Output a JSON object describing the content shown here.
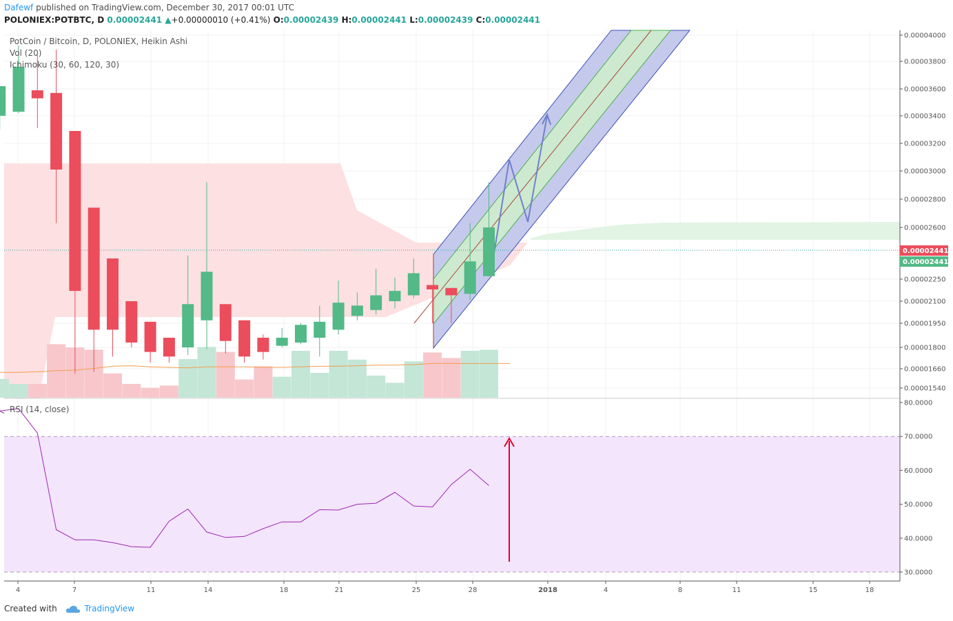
{
  "header": {
    "author": "Dafewf",
    "published": " published on TradingView.com, December 30, 2017 00:01 UTC",
    "symbol": "POLONIEX:POTBTC, D",
    "last": "0.00002441",
    "change": "+0.00000010 (+0.41%)",
    "o_label": "O:",
    "o": "0.00002439",
    "h_label": "H:",
    "h": "0.00002441",
    "l_label": "L:",
    "l": "0.00002439",
    "c_label": "C:",
    "c": "0.00002441"
  },
  "legend": {
    "title": "PotCoin / Bitcoin, D, POLONIEX, Heikin Ashi",
    "vol": "Vol (20)",
    "ichimoku": "Ichimoku (30, 60, 120, 30)",
    "rsi": "RSI (14, close)"
  },
  "footer": {
    "created": "Created with",
    "brand": "TradingView"
  },
  "colors": {
    "up": "#53b987",
    "down": "#eb4d5c",
    "up_vol": "#c3e6d6",
    "down_vol": "#f7c7cc",
    "cloud_red": "#fde0e2",
    "cloud_green": "#e2f4e4",
    "rsi_line": "#9c27b0",
    "rsi_band": "#f3e5fc",
    "channel_blue": "#3f51b5",
    "channel_green": "#4caf50",
    "arrow": "#e3002d",
    "path": "#6f80c9"
  },
  "chart_data": [
    {
      "type": "candlestick",
      "title": "PotCoin / Bitcoin, D, POLONIEX, Heikin Ashi",
      "x_ticks": [
        "4",
        "7",
        "11",
        "14",
        "18",
        "21",
        "25",
        "28",
        "2018",
        "4",
        "8",
        "11",
        "15",
        "18"
      ],
      "y_ticks": [
        "0.00004000",
        "0.00003800",
        "0.00003600",
        "0.00003400",
        "0.00003200",
        "0.00003000",
        "0.00002800",
        "0.00002600",
        "0.00002250",
        "0.00002100",
        "0.00001950",
        "0.00001800",
        "0.00001660",
        "0.00001540"
      ],
      "price_labels": [
        "0.00002441",
        "0.00002441"
      ],
      "candles": [
        {
          "d": "Dec 3",
          "o": 3.4e-05,
          "h": 3.62e-05,
          "l": 3.3e-05,
          "c": 3.62e-05
        },
        {
          "d": "Dec 4",
          "o": 3.43e-05,
          "h": 3.92e-05,
          "l": 3.42e-05,
          "c": 3.76e-05
        },
        {
          "d": "Dec 5",
          "o": 3.59e-05,
          "h": 3.85e-05,
          "l": 3.31e-05,
          "c": 3.53e-05
        },
        {
          "d": "Dec 6",
          "o": 3.57e-05,
          "h": 3.89e-05,
          "l": 2.63e-05,
          "c": 3.01e-05
        },
        {
          "d": "Dec 7",
          "o": 3.29e-05,
          "h": 3.29e-05,
          "l": 1.63e-05,
          "c": 2.17e-05
        },
        {
          "d": "Dec 8",
          "o": 2.74e-05,
          "h": 2.74e-05,
          "l": 1.64e-05,
          "c": 1.91e-05
        },
        {
          "d": "Dec 9",
          "o": 2.39e-05,
          "h": 2.39e-05,
          "l": 1.74e-05,
          "c": 1.91e-05
        },
        {
          "d": "Dec 10",
          "o": 2.1e-05,
          "h": 2.1e-05,
          "l": 1.8e-05,
          "c": 1.83e-05
        },
        {
          "d": "Dec 11",
          "o": 1.96e-05,
          "h": 1.96e-05,
          "l": 1.7e-05,
          "c": 1.77e-05
        },
        {
          "d": "Dec 12",
          "o": 1.86e-05,
          "h": 1.86e-05,
          "l": 1.7e-05,
          "c": 1.74e-05
        },
        {
          "d": "Dec 13",
          "o": 1.8e-05,
          "h": 2.41e-05,
          "l": 1.75e-05,
          "c": 2.08e-05
        },
        {
          "d": "Dec 14",
          "o": 1.97e-05,
          "h": 2.92e-05,
          "l": 1.79e-05,
          "c": 2.3e-05
        },
        {
          "d": "Dec 15",
          "o": 2.08e-05,
          "h": 2.08e-05,
          "l": 1.76e-05,
          "c": 1.84e-05
        },
        {
          "d": "Dec 16",
          "o": 1.97e-05,
          "h": 1.97e-05,
          "l": 1.7e-05,
          "c": 1.74e-05
        },
        {
          "d": "Dec 17",
          "o": 1.86e-05,
          "h": 1.88e-05,
          "l": 1.72e-05,
          "c": 1.77e-05
        },
        {
          "d": "Dec 18",
          "o": 1.81e-05,
          "h": 1.92e-05,
          "l": 1.8e-05,
          "c": 1.86e-05
        },
        {
          "d": "Dec 19",
          "o": 1.83e-05,
          "h": 1.95e-05,
          "l": 1.82e-05,
          "c": 1.94e-05
        },
        {
          "d": "Dec 20",
          "o": 1.86e-05,
          "h": 2.07e-05,
          "l": 1.74e-05,
          "c": 1.96e-05
        },
        {
          "d": "Dec 21",
          "o": 1.91e-05,
          "h": 2.24e-05,
          "l": 1.88e-05,
          "c": 2.09e-05
        },
        {
          "d": "Dec 22",
          "o": 2e-05,
          "h": 2.16e-05,
          "l": 1.97e-05,
          "c": 2.07e-05
        },
        {
          "d": "Dec 23",
          "o": 2.04e-05,
          "h": 2.32e-05,
          "l": 2.01e-05,
          "c": 2.14e-05
        },
        {
          "d": "Dec 24",
          "o": 2.1e-05,
          "h": 2.26e-05,
          "l": 2.05e-05,
          "c": 2.17e-05
        },
        {
          "d": "Dec 25",
          "o": 2.14e-05,
          "h": 2.39e-05,
          "l": 2.12e-05,
          "c": 2.29e-05
        },
        {
          "d": "Dec 26",
          "o": 2.21e-05,
          "h": 2.21e-05,
          "l": 1.95e-05,
          "c": 2.18e-05
        },
        {
          "d": "Dec 27",
          "o": 2.19e-05,
          "h": 2.19e-05,
          "l": 1.95e-05,
          "c": 2.14e-05
        },
        {
          "d": "Dec 28",
          "o": 2.15e-05,
          "h": 2.63e-05,
          "l": 2.11e-05,
          "c": 2.37e-05
        },
        {
          "d": "Dec 29",
          "o": 2.27e-05,
          "h": 2.92e-05,
          "l": 2.27e-05,
          "c": 2.6e-05
        }
      ],
      "volume_rel": [
        0.34,
        0.25,
        0.25,
        0.97,
        0.91,
        0.87,
        0.44,
        0.25,
        0.18,
        0.22,
        0.7,
        0.92,
        0.83,
        0.33,
        0.57,
        0.38,
        0.85,
        0.45,
        0.85,
        0.69,
        0.4,
        0.27,
        0.66,
        0.82,
        0.72,
        0.85,
        0.87
      ],
      "volume_ma_rel": [
        0.46,
        0.46,
        0.47,
        0.49,
        0.5,
        0.53,
        0.57,
        0.58,
        0.56,
        0.55,
        0.54,
        0.56,
        0.56,
        0.56,
        0.55,
        0.55,
        0.56,
        0.57,
        0.57,
        0.58,
        0.59,
        0.59,
        0.6,
        0.62,
        0.62,
        0.62,
        0.62
      ]
    },
    {
      "type": "line",
      "title": "RSI (14, close)",
      "y_ticks": [
        "80.0000",
        "70.0000",
        "60.0000",
        "50.0000",
        "40.0000",
        "30.0000"
      ],
      "ylim": [
        28,
        82
      ],
      "band": [
        30,
        70
      ],
      "values": [
        77.5,
        78.2,
        71,
        42.5,
        39.5,
        39.5,
        38.7,
        37.5,
        37.3,
        45,
        48.6,
        41.8,
        40.2,
        40.5,
        42.8,
        44.8,
        44.8,
        48.4,
        48.3,
        50,
        50.3,
        53.5,
        49.5,
        49.2,
        55.8,
        60.3,
        55.5
      ]
    }
  ]
}
